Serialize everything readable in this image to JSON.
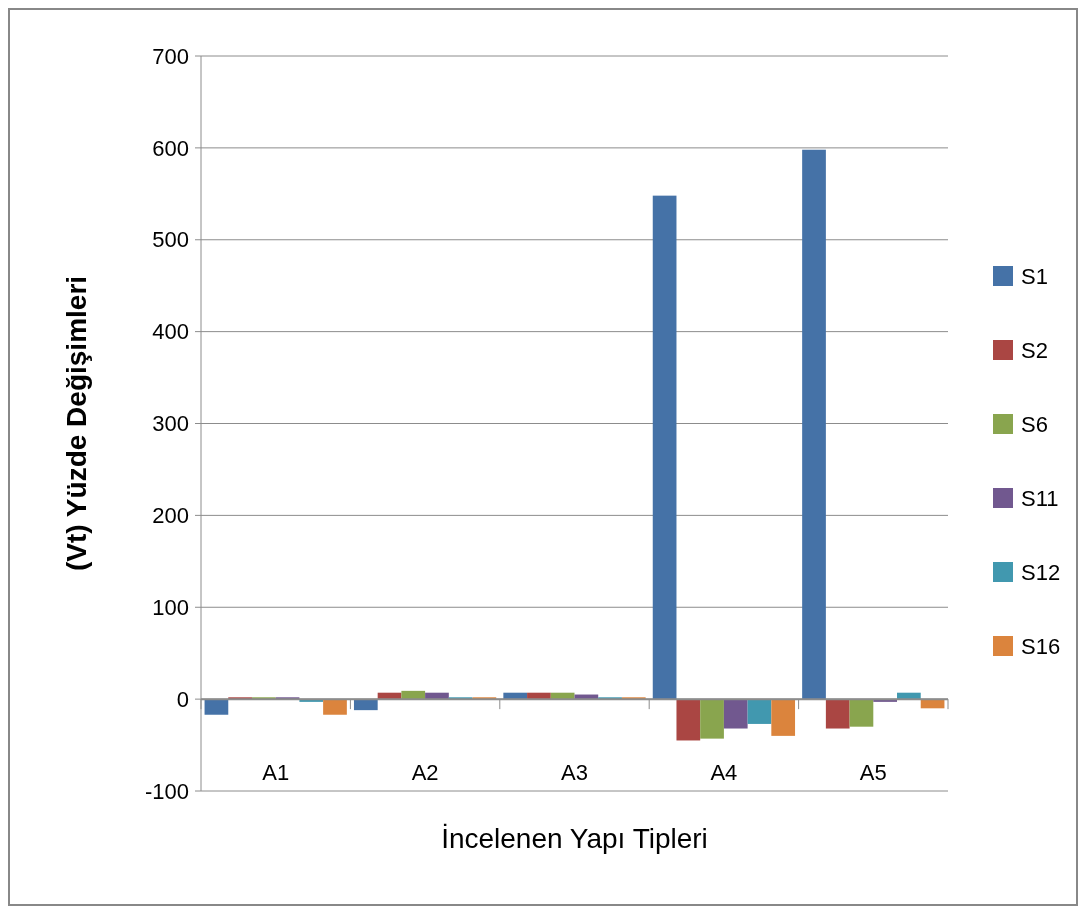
{
  "chart_data": {
    "type": "bar",
    "xlabel": "İncelenen Yapı Tipleri",
    "ylabel": "(Vt) Yüzde Değişimleri",
    "categories": [
      "A1",
      "A2",
      "A3",
      "A4",
      "A5"
    ],
    "series": [
      {
        "name": "S1",
        "color": "#4572a7",
        "values": [
          -17,
          -12,
          7,
          548,
          598
        ]
      },
      {
        "name": "S2",
        "color": "#aa4643",
        "values": [
          2,
          7,
          7,
          -45,
          -32
        ]
      },
      {
        "name": "S6",
        "color": "#89a54e",
        "values": [
          2,
          9,
          7,
          -43,
          -30
        ]
      },
      {
        "name": "S11",
        "color": "#71588f",
        "values": [
          2,
          7,
          5,
          -32,
          -3
        ]
      },
      {
        "name": "S12",
        "color": "#4198af",
        "values": [
          -3,
          2,
          2,
          -27,
          7
        ]
      },
      {
        "name": "S16",
        "color": "#db843d",
        "values": [
          -17,
          2,
          2,
          -40,
          -10
        ]
      }
    ],
    "ylim": [
      -100,
      700
    ],
    "yticks": [
      -100,
      0,
      100,
      200,
      300,
      400,
      500,
      600,
      700
    ],
    "grid": "y",
    "legend": "right"
  }
}
